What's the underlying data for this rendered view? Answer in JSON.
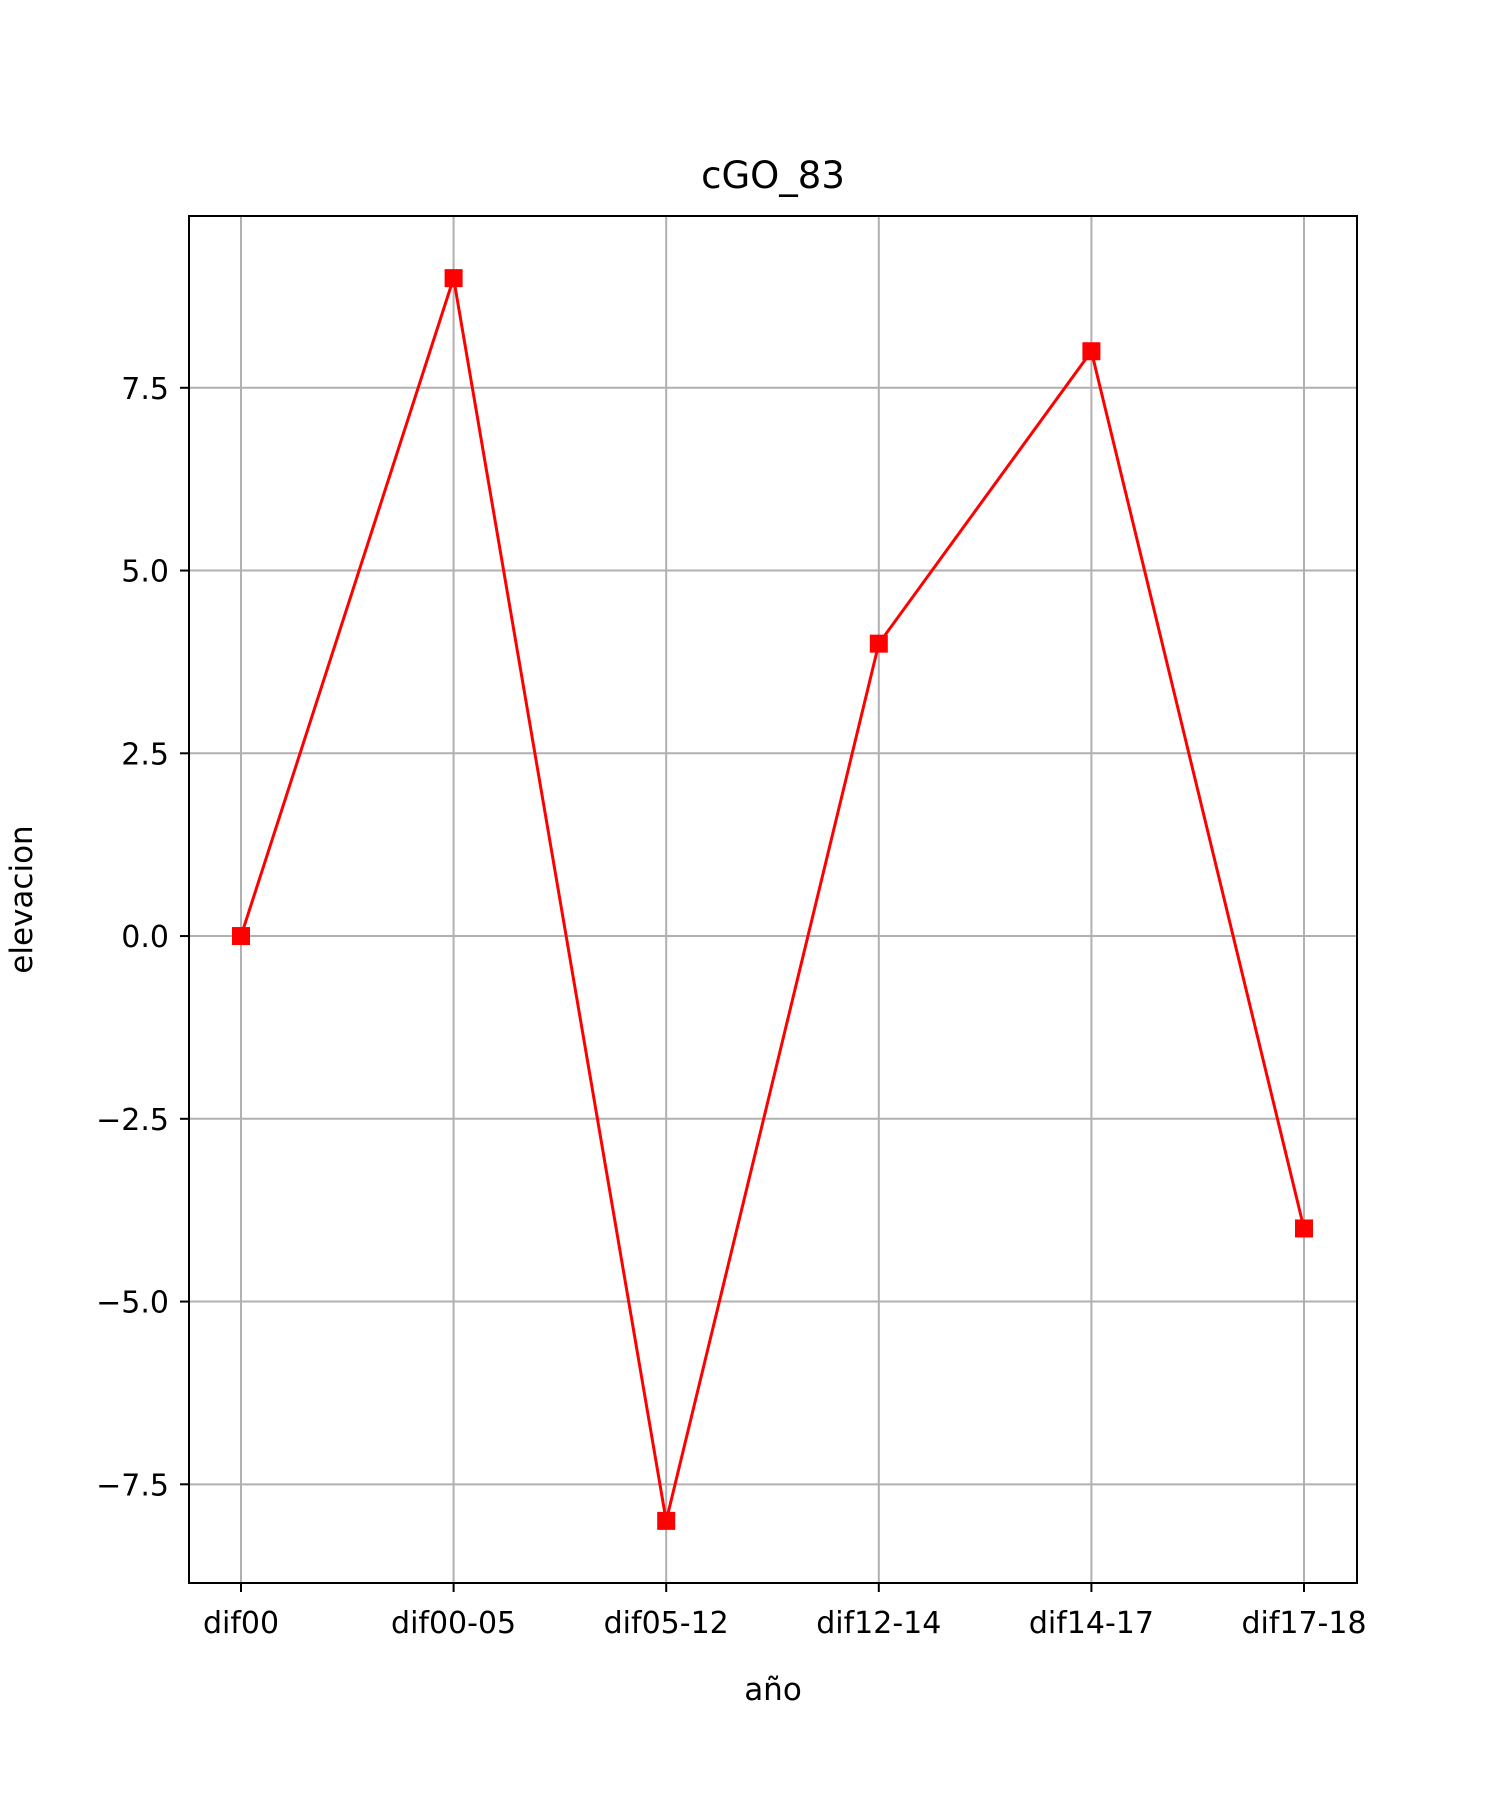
{
  "chart_data": {
    "type": "line",
    "title": "cGO_83",
    "xlabel": "año",
    "ylabel": "elevacion",
    "categories": [
      "dif00",
      "dif00-05",
      "dif05-12",
      "dif12-14",
      "dif14-17",
      "dif17-18"
    ],
    "series": [
      {
        "values": [
          0,
          9,
          -8,
          4,
          8,
          -4
        ],
        "color": "#ff0000",
        "marker": "square"
      }
    ],
    "ylim": [
      -8.85,
      9.85
    ],
    "yticks": [
      -7.5,
      -5.0,
      -2.5,
      0.0,
      2.5,
      5.0,
      7.5
    ],
    "ytick_labels": [
      "−7.5",
      "−5.0",
      "−2.5",
      "0.0",
      "2.5",
      "5.0",
      "7.5"
    ],
    "grid": true,
    "colors": {
      "grid": "#b0b0b0",
      "axes": "#000000",
      "series": "#ff0000"
    }
  }
}
